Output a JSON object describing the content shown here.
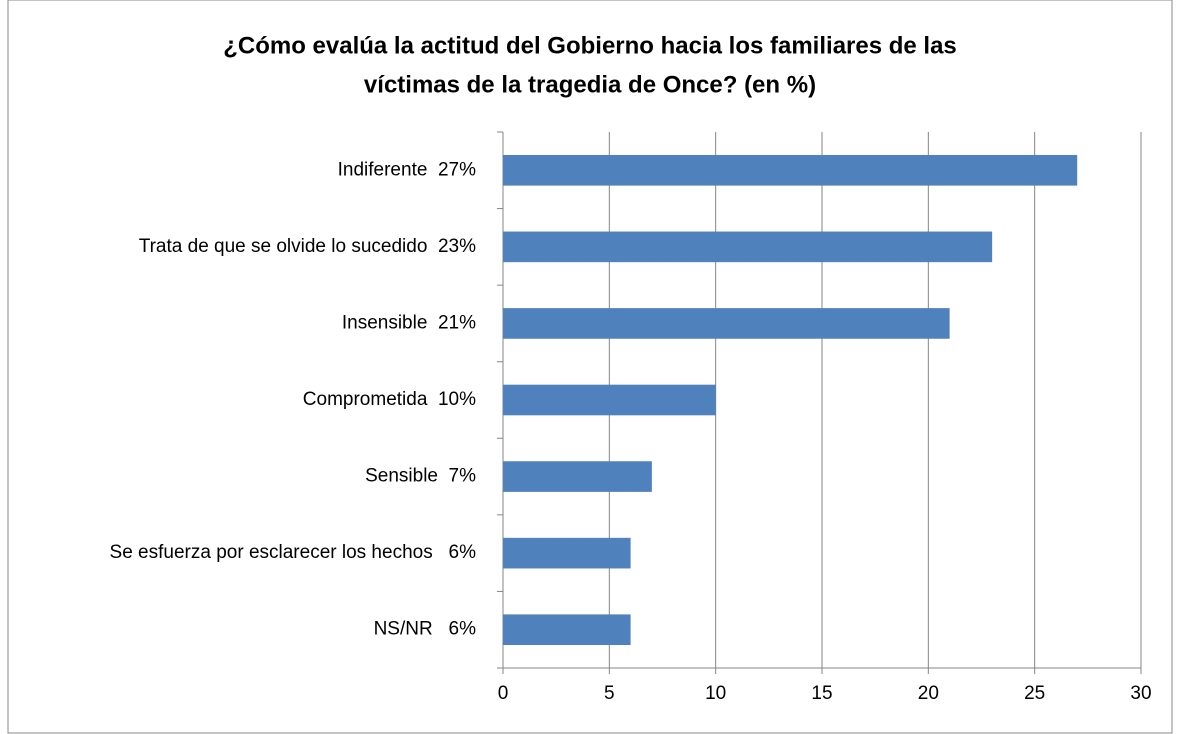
{
  "chart_data": {
    "type": "bar",
    "orientation": "horizontal",
    "title": [
      "¿Cómo evalúa la actitud del Gobierno hacia los familiares de las",
      "víctimas de la tragedia de Once? (en %)"
    ],
    "categories": [
      "Indiferente  27%",
      "Trata de que se olvide lo sucedido  23%",
      "Insensible  21%",
      "Comprometida  10%",
      "Sensible  7%",
      "Se esfuerza por esclarecer los hechos   6%",
      "NS/NR   6%"
    ],
    "values": [
      27,
      23,
      21,
      10,
      7,
      6,
      6
    ],
    "color": "#4f81bd",
    "xlim": [
      0,
      30
    ],
    "xticks": [
      0,
      5,
      10,
      15,
      20,
      25,
      30
    ],
    "grid": true
  }
}
